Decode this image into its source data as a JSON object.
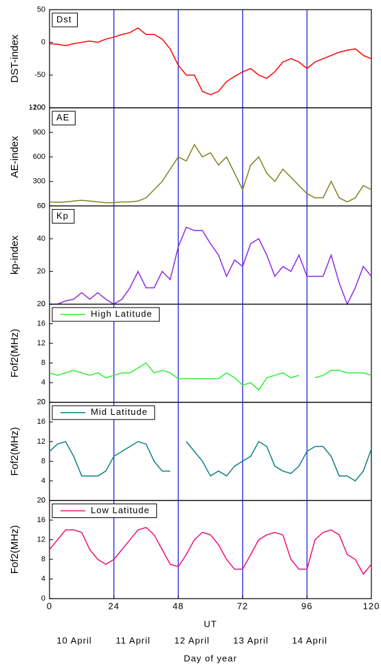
{
  "chart_data": [
    {
      "type": "line",
      "ylabel": "DST-index",
      "xlim": [
        0,
        120
      ],
      "ylim": [
        -100,
        50
      ],
      "yticks": [
        -100,
        -50,
        0,
        50
      ],
      "vlines": [
        24,
        48,
        72,
        96
      ],
      "vline_color": "#2020e0",
      "legend_sample": false,
      "x": [
        0,
        3,
        6,
        9,
        12,
        15,
        18,
        21,
        24,
        27,
        30,
        33,
        36,
        39,
        42,
        45,
        48,
        51,
        54,
        57,
        60,
        63,
        66,
        69,
        72,
        75,
        78,
        81,
        84,
        87,
        90,
        93,
        96,
        99,
        102,
        105,
        108,
        111,
        114,
        117,
        120
      ],
      "series": [
        {
          "name": "Dst",
          "color": "#ff0000",
          "values": [
            -2,
            -3,
            -5,
            -2,
            0,
            2,
            0,
            5,
            8,
            12,
            15,
            22,
            12,
            12,
            5,
            -10,
            -35,
            -50,
            -50,
            -75,
            -80,
            -75,
            -60,
            -52,
            -45,
            -40,
            -50,
            -55,
            -45,
            -30,
            -25,
            -30,
            -40,
            -30,
            -25,
            -20,
            -15,
            -12,
            -10,
            -20,
            -25
          ]
        }
      ]
    },
    {
      "type": "line",
      "ylabel": "AE-index",
      "xlim": [
        0,
        120
      ],
      "ylim": [
        0,
        1200
      ],
      "yticks": [
        0,
        300,
        600,
        900,
        1200
      ],
      "vlines": [
        24,
        48,
        72,
        96
      ],
      "vline_color": "#2020e0",
      "legend_sample": false,
      "x": [
        0,
        3,
        6,
        9,
        12,
        15,
        18,
        21,
        24,
        27,
        30,
        33,
        36,
        39,
        42,
        45,
        48,
        51,
        54,
        57,
        60,
        63,
        66,
        69,
        72,
        75,
        78,
        81,
        84,
        87,
        90,
        93,
        96,
        99,
        102,
        105,
        108,
        111,
        114,
        117,
        120
      ],
      "series": [
        {
          "name": "AE",
          "color": "#808020",
          "values": [
            50,
            45,
            50,
            60,
            70,
            60,
            50,
            40,
            40,
            50,
            50,
            60,
            100,
            200,
            300,
            450,
            600,
            550,
            750,
            600,
            650,
            500,
            600,
            400,
            200,
            500,
            600,
            400,
            300,
            450,
            350,
            250,
            150,
            100,
            100,
            300,
            100,
            50,
            100,
            250,
            200
          ]
        }
      ]
    },
    {
      "type": "line",
      "ylabel": "kp-index",
      "xlim": [
        0,
        120
      ],
      "ylim": [
        0,
        60
      ],
      "yticks": [
        0,
        20,
        40,
        60
      ],
      "vlines": [
        24,
        48,
        72,
        96
      ],
      "vline_color": "#2020e0",
      "legend_sample": false,
      "x": [
        0,
        3,
        6,
        9,
        12,
        15,
        18,
        21,
        24,
        27,
        30,
        33,
        36,
        39,
        42,
        45,
        48,
        51,
        54,
        57,
        60,
        63,
        66,
        69,
        72,
        75,
        78,
        81,
        84,
        87,
        90,
        93,
        96,
        99,
        102,
        105,
        108,
        111,
        114,
        117,
        120
      ],
      "series": [
        {
          "name": "Kp",
          "color": "#8a2be2",
          "values": [
            0,
            0,
            2,
            3,
            7,
            3,
            7,
            3,
            0,
            3,
            10,
            20,
            10,
            10,
            20,
            15,
            35,
            47,
            45,
            45,
            37,
            30,
            17,
            27,
            23,
            37,
            40,
            30,
            17,
            23,
            20,
            30,
            17,
            17,
            17,
            30,
            13,
            0,
            10,
            23,
            17
          ]
        }
      ]
    },
    {
      "type": "line",
      "ylabel": "Fof2(MHz)",
      "xlim": [
        0,
        120
      ],
      "ylim": [
        0,
        20
      ],
      "yticks": [
        0,
        4,
        8,
        12,
        16,
        20
      ],
      "vlines": [
        24,
        48,
        72,
        96
      ],
      "vline_color": "#2020e0",
      "legend_sample": true,
      "x": [
        0,
        3,
        6,
        9,
        12,
        15,
        18,
        21,
        24,
        27,
        30,
        33,
        36,
        39,
        42,
        45,
        48,
        51,
        54,
        57,
        60,
        63,
        66,
        69,
        72,
        75,
        78,
        81,
        84,
        87,
        90,
        93,
        96,
        99,
        102,
        105,
        108,
        111,
        114,
        117,
        120
      ],
      "series": [
        {
          "name": "High Latitude",
          "color": "#33ee33",
          "values": [
            6,
            5.5,
            6,
            6.5,
            6,
            5.5,
            6,
            5,
            5.5,
            6,
            6,
            7,
            8,
            6,
            6.5,
            6,
            4.8,
            4.8,
            4.8,
            4.8,
            4.8,
            4.8,
            6,
            5,
            3.5,
            4,
            2.5,
            5,
            5.5,
            6,
            5,
            5.5,
            null,
            5,
            5.5,
            6.5,
            6.5,
            6,
            6,
            6,
            5.5
          ]
        }
      ]
    },
    {
      "type": "line",
      "ylabel": "Fof2(MHz)",
      "xlim": [
        0,
        120
      ],
      "ylim": [
        0,
        20
      ],
      "yticks": [
        0,
        4,
        8,
        12,
        16,
        20
      ],
      "vlines": [
        24,
        48,
        72,
        96
      ],
      "vline_color": "#2020e0",
      "legend_sample": true,
      "x": [
        0,
        3,
        6,
        9,
        12,
        15,
        18,
        21,
        24,
        27,
        30,
        33,
        36,
        39,
        42,
        45,
        48,
        51,
        54,
        57,
        60,
        63,
        66,
        69,
        72,
        75,
        78,
        81,
        84,
        87,
        90,
        93,
        96,
        99,
        102,
        105,
        108,
        111,
        114,
        117,
        120
      ],
      "series": [
        {
          "name": "Mid Latitude",
          "color": "#108080",
          "values": [
            10,
            11.5,
            12,
            9,
            5,
            5,
            5,
            6,
            9,
            10,
            11,
            12,
            11.5,
            8,
            6,
            6,
            null,
            12,
            10,
            8,
            5,
            6,
            5,
            7,
            8,
            9,
            12,
            11,
            7,
            6,
            5.5,
            7,
            10,
            11,
            11,
            9,
            5,
            5,
            4,
            6,
            10.5
          ]
        }
      ]
    },
    {
      "type": "line",
      "ylabel": "Fof2(MHz)",
      "xlim": [
        0,
        120
      ],
      "ylim": [
        0,
        20
      ],
      "yticks": [
        0,
        4,
        8,
        12,
        16,
        20
      ],
      "vlines": [
        24,
        48,
        72,
        96
      ],
      "vline_color": "#2020e0",
      "legend_sample": true,
      "xticks": [
        0,
        24,
        48,
        72,
        96,
        120
      ],
      "xlabel": "UT",
      "day_labels": [
        "10 April",
        "11 April",
        "12 April",
        "13 April",
        "14 April"
      ],
      "day_title": "Day of year",
      "x": [
        0,
        3,
        6,
        9,
        12,
        15,
        18,
        21,
        24,
        27,
        30,
        33,
        36,
        39,
        42,
        45,
        48,
        51,
        54,
        57,
        60,
        63,
        66,
        69,
        72,
        75,
        78,
        81,
        84,
        87,
        90,
        93,
        96,
        99,
        102,
        105,
        108,
        111,
        114,
        117,
        120
      ],
      "series": [
        {
          "name": "Low Latitude",
          "color": "#ee1177",
          "values": [
            10,
            12,
            14,
            14,
            13.5,
            10,
            8,
            7,
            8,
            10,
            12,
            14,
            14.5,
            13,
            10,
            7,
            6.5,
            9,
            12,
            13.5,
            13,
            11,
            8,
            6,
            6,
            9,
            12,
            13,
            13.5,
            13,
            8,
            6,
            6,
            12,
            13.5,
            14,
            13,
            9,
            8,
            5,
            7
          ]
        }
      ]
    }
  ]
}
